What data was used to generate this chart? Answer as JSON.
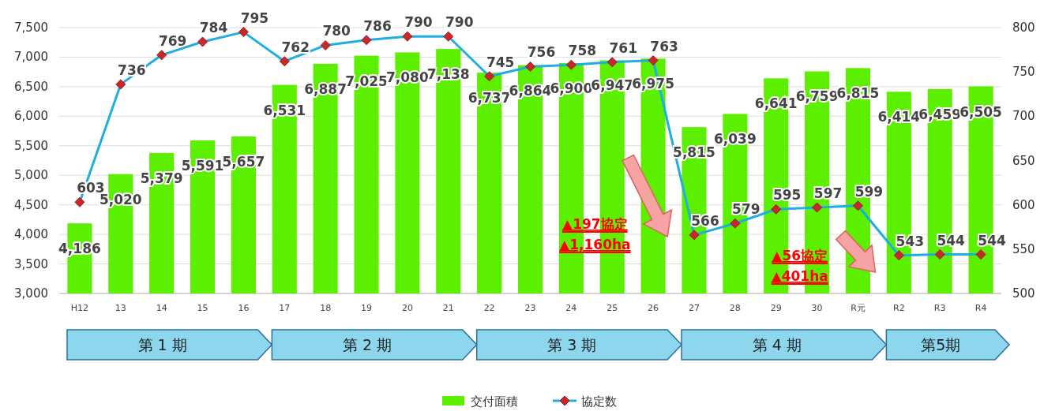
{
  "chart_data": {
    "type": "bar",
    "categories": [
      "H12",
      "13",
      "14",
      "15",
      "16",
      "17",
      "18",
      "19",
      "20",
      "21",
      "22",
      "23",
      "24",
      "25",
      "26",
      "27",
      "28",
      "29",
      "30",
      "R元",
      "R2",
      "R3",
      "R4"
    ],
    "series": [
      {
        "name": "交付面積",
        "color": "#5cf000",
        "values": [
          4186,
          5020,
          5379,
          5591,
          5657,
          6531,
          6887,
          7025,
          7080,
          7138,
          6737,
          6864,
          6900,
          6947,
          6975,
          5815,
          6039,
          6641,
          6759,
          6815,
          6414,
          6459,
          6505
        ],
        "value_labels": [
          "4,186",
          "5,020",
          "5,379",
          "5,591",
          "5,657",
          "6,531",
          "6,887",
          "7,025",
          "7,080",
          "7,138",
          "6,737",
          "6,864",
          "6,900",
          "6,947",
          "6,975",
          "5,815",
          "6,039",
          "6,641",
          "6,759",
          "6,815",
          "6,414",
          "6,459",
          "6,505"
        ]
      },
      {
        "name": "協定数",
        "type": "line",
        "axis": "y2",
        "color": "#1eaee0",
        "marker": "diamond",
        "values": [
          603,
          736,
          769,
          784,
          795,
          762,
          780,
          786,
          790,
          790,
          745,
          756,
          758,
          761,
          763,
          566,
          579,
          595,
          597,
          599,
          543,
          544,
          544
        ]
      }
    ],
    "ylim": [
      3000,
      7500
    ],
    "yticks": [
      {
        "value": 3000,
        "label": "3,000"
      },
      {
        "value": 3500,
        "label": "3,500"
      },
      {
        "value": 4000,
        "label": "4,000"
      },
      {
        "value": 4500,
        "label": "4,500"
      },
      {
        "value": 5000,
        "label": "5,000"
      },
      {
        "value": 5500,
        "label": "5,500"
      },
      {
        "value": 6000,
        "label": "6,000"
      },
      {
        "value": 6500,
        "label": "6,500"
      },
      {
        "value": 7000,
        "label": "7,000"
      },
      {
        "value": 7500,
        "label": "7,500"
      }
    ],
    "y2lim": [
      500,
      800
    ],
    "y2ticks": [
      500,
      550,
      600,
      650,
      700,
      750,
      800
    ],
    "grid": "y",
    "legend": "bottom",
    "data_labels": true,
    "annotations": [
      "第 1 期",
      "第 2 期",
      "第 3 期",
      "第 4 期",
      "第5期",
      "▲197協定",
      "▲1,160ha",
      "▲56協定",
      "▲401ha"
    ]
  }
}
